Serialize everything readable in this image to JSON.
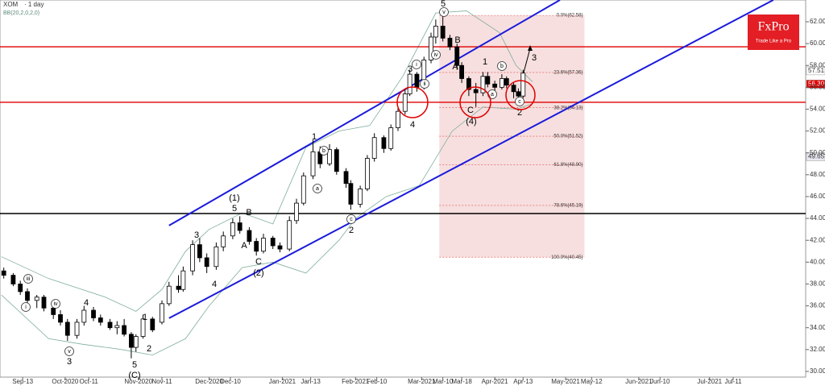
{
  "chart_data": {
    "type": "candlestick",
    "title": "XOM",
    "subtitle": "· 1 day",
    "indicator": "BB(20,2,0,2,0)",
    "brand": {
      "name": "FxPro",
      "tagline": "Trade Like a Pro"
    },
    "xlim": [
      -9.6,
      331.7
    ],
    "ylim": [
      29.48,
      63.99
    ],
    "xticks": [
      {
        "value": 0,
        "label": "Sep-13"
      },
      {
        "value": 18,
        "label": "Oct-2020"
      },
      {
        "value": 28,
        "label": "Oct-11"
      },
      {
        "value": 49,
        "label": "Nov-2020"
      },
      {
        "value": 59,
        "label": "Nov-11"
      },
      {
        "value": 79,
        "label": "Dec-2020"
      },
      {
        "value": 88,
        "label": "Dec-10"
      },
      {
        "value": 110,
        "label": "Jan-2021"
      },
      {
        "value": 122,
        "label": "Jan-13"
      },
      {
        "value": 141,
        "label": "Feb-2021"
      },
      {
        "value": 150,
        "label": "Feb-10"
      },
      {
        "value": 169,
        "label": "Mar-2021"
      },
      {
        "value": 178,
        "label": "Mar-10"
      },
      {
        "value": 186,
        "label": "Mar-18"
      },
      {
        "value": 200,
        "label": "Apr-2021"
      },
      {
        "value": 212,
        "label": "Apr-13"
      },
      {
        "value": 230,
        "label": "May-2021"
      },
      {
        "value": 241,
        "label": "May-12"
      },
      {
        "value": 261,
        "label": "Jun-2021"
      },
      {
        "value": 270,
        "label": "Jun-10"
      },
      {
        "value": 291,
        "label": "Jul-2021"
      },
      {
        "value": 301,
        "label": "Jul-11"
      }
    ],
    "yticks": [
      {
        "value": 30,
        "label": "30.00"
      },
      {
        "value": 32,
        "label": "32.00"
      },
      {
        "value": 34,
        "label": "34.00"
      },
      {
        "value": 36,
        "label": "36.00"
      },
      {
        "value": 38,
        "label": "38.00"
      },
      {
        "value": 40,
        "label": "40.00"
      },
      {
        "value": 42,
        "label": "42.00"
      },
      {
        "value": 44,
        "label": "44.00"
      },
      {
        "value": 46,
        "label": "46.00"
      },
      {
        "value": 48,
        "label": "48.00"
      },
      {
        "value": 50,
        "label": "50.00"
      },
      {
        "value": 52,
        "label": "52.00"
      },
      {
        "value": 54,
        "label": "54.00"
      },
      {
        "value": 56,
        "label": "56.00"
      },
      {
        "value": 58,
        "label": "58.00"
      },
      {
        "value": 60,
        "label": "60.00"
      },
      {
        "value": 62,
        "label": "62.00"
      }
    ],
    "x": [
      -8,
      -4,
      -1,
      2,
      6,
      9,
      13,
      16,
      19,
      23,
      26,
      30,
      33,
      37,
      40,
      43,
      46,
      48,
      51,
      55,
      59,
      62,
      66,
      68,
      72,
      75,
      78,
      82,
      85,
      89,
      92,
      96,
      99,
      102,
      106,
      109,
      113,
      116,
      119,
      123,
      126,
      130,
      133,
      137,
      139,
      143,
      146,
      149,
      153,
      156,
      159,
      162,
      164,
      167,
      170,
      173,
      175,
      178,
      181,
      184,
      186,
      189,
      192,
      195,
      197,
      200,
      203,
      205,
      208,
      210,
      212
    ],
    "open": [
      39.2,
      38.8,
      38,
      37.3,
      36.5,
      36.8,
      35.8,
      35.2,
      34.5,
      33.3,
      34.5,
      35.6,
      34.9,
      34.5,
      34,
      34.2,
      33.4,
      32.2,
      33.2,
      34.8,
      34.5,
      36.2,
      37.8,
      37.5,
      39.2,
      41.6,
      40.4,
      39.6,
      41.4,
      42.4,
      43.6,
      42.9,
      41.9,
      41,
      42.2,
      41.5,
      41.2,
      43.8,
      45.4,
      47.9,
      50.1,
      49,
      50.3,
      48.3,
      47.2,
      45.3,
      46.7,
      49.5,
      51.4,
      50.4,
      52.3,
      53.8,
      55.4,
      57.2,
      56,
      58.5,
      60.6,
      61.6,
      60.5,
      59.7,
      58,
      56.8,
      55.8,
      55.5,
      57,
      56.3,
      56,
      56.8,
      56.2,
      55.6,
      55.2
    ],
    "high": [
      39.5,
      39,
      38.3,
      37.6,
      37,
      37,
      36,
      35.6,
      34.8,
      34.8,
      36,
      35.9,
      35.2,
      34.8,
      34.6,
      34.8,
      33.6,
      33.4,
      35.2,
      35,
      36.5,
      38.2,
      38.8,
      39.6,
      42,
      42.2,
      40.8,
      41.8,
      42.8,
      44,
      44.2,
      43.2,
      42.2,
      42.6,
      42.4,
      41.8,
      44.2,
      45.8,
      48.2,
      51.2,
      50.6,
      50.8,
      50.5,
      48.6,
      47.5,
      47,
      49.8,
      51.8,
      51.6,
      52.6,
      54.2,
      55.8,
      57.6,
      57.4,
      58.8,
      61,
      62.2,
      62.6,
      60.8,
      60,
      58.3,
      57,
      56.4,
      57.4,
      57.4,
      56.6,
      57.2,
      57,
      56.4,
      55.9,
      57.6
    ],
    "low": [
      38.5,
      37.8,
      37,
      36.2,
      35.8,
      35.5,
      34.8,
      34.2,
      32.8,
      33,
      34.2,
      34.6,
      34.2,
      33.8,
      33.4,
      33.2,
      31.2,
      31.8,
      33,
      33.6,
      34.3,
      36,
      37.2,
      37.3,
      38.8,
      40,
      39,
      39.3,
      41,
      42.1,
      42.6,
      41.6,
      40.6,
      40.8,
      41.2,
      40.9,
      41,
      43.5,
      45.2,
      47.6,
      48.6,
      48.8,
      48,
      46.8,
      44.8,
      45,
      46.5,
      49.2,
      50,
      50.2,
      52,
      53.5,
      55.2,
      55.6,
      55.8,
      58.2,
      60,
      60.2,
      59.4,
      57.6,
      56.4,
      55.2,
      54.2,
      55.2,
      56,
      55.6,
      55.8,
      55.9,
      55,
      54.6,
      55
    ],
    "close": [
      38.8,
      38,
      37.3,
      36.5,
      36.8,
      35.8,
      35.2,
      34.5,
      33.3,
      34.5,
      35.6,
      34.9,
      34.5,
      34,
      34.2,
      33.4,
      32.2,
      33.2,
      34.8,
      33.8,
      36.2,
      37.8,
      37.5,
      39.2,
      41.6,
      40.4,
      39.6,
      41.4,
      42.4,
      43.6,
      42.9,
      41.9,
      41,
      42.2,
      41.5,
      41.2,
      43.8,
      45.4,
      47.9,
      50.1,
      49,
      50.3,
      48.3,
      47.2,
      45.3,
      46.7,
      49.5,
      51.4,
      50.4,
      52.3,
      53.8,
      55.4,
      57.2,
      56,
      58.5,
      60.6,
      61.6,
      60.5,
      59.7,
      58,
      56.8,
      55.8,
      55.5,
      57,
      56.3,
      56,
      56.8,
      56.2,
      55.6,
      55.2,
      57.3
    ],
    "bands": {
      "color": "#7fae9a",
      "upper_x": [
        -9,
        11,
        35,
        48,
        59,
        69,
        79,
        93,
        106,
        120,
        134,
        147,
        161,
        175,
        188,
        202,
        209,
        216
      ],
      "upper": [
        40.5,
        38.5,
        36.8,
        35.5,
        37.5,
        41,
        43,
        44.5,
        43.5,
        50.5,
        52,
        52.5,
        57,
        62.8,
        63,
        61,
        58,
        56.5
      ],
      "lower_x": [
        -9,
        11,
        25,
        42,
        55,
        69,
        79,
        93,
        106,
        120,
        134,
        141,
        154,
        168,
        182,
        195,
        209,
        216
      ],
      "lower": [
        37,
        33,
        32.5,
        32,
        31.5,
        33,
        36,
        39.5,
        40,
        39,
        42,
        44,
        46,
        47,
        52,
        54.2,
        54,
        54.5
      ]
    },
    "levels": [
      {
        "value": 59.71,
        "color": "#e00000"
      },
      {
        "value": 54.63,
        "color": "#e00000"
      },
      {
        "value": 44.45,
        "color": "#000000"
      }
    ],
    "trendlines": [
      {
        "x": [
          62,
          227.6
        ],
        "y": [
          43.35,
          63.99
        ],
        "color": "#1a1adb"
      },
      {
        "x": [
          62,
          318
        ],
        "y": [
          34.87,
          63.99
        ],
        "color": "#1a1adb"
      }
    ],
    "fib_box": {
      "x": [
        176.5,
        238
      ],
      "color": "#f4d4d4"
    },
    "fib_levels": [
      {
        "value": 62.58,
        "label": "0.0%(62.58)"
      },
      {
        "value": 57.36,
        "label": "23.6%(57.36)"
      },
      {
        "value": 54.13,
        "label": "38.2%(54.13)"
      },
      {
        "value": 51.52,
        "label": "50.0%(51.52)"
      },
      {
        "value": 48.9,
        "label": "61.8%(48.90)"
      },
      {
        "value": 45.19,
        "label": "78.6%(45.19)"
      },
      {
        "value": 40.45,
        "label": "100.0%(40.45)"
      }
    ],
    "price_tags": [
      {
        "value": 57.51,
        "color": "#ffffff"
      },
      {
        "value": {
          "value": 56.3,
          "label": "56.30"
        },
        "color": "#e00000"
      },
      {
        "value": 49.65,
        "color": "#e8e8f0"
      }
    ],
    "wave_labels": [
      {
        "text": "5",
        "circled": false
      },
      {
        "text": "v",
        "circled": true
      },
      {
        "text": "B",
        "circled": false
      },
      {
        "text": "iv",
        "circled": true
      },
      {
        "text": "A",
        "circled": false
      },
      {
        "text": "3",
        "circled": false
      },
      {
        "text": "i",
        "circled": true
      },
      {
        "text": "ii",
        "circled": true
      },
      {
        "text": "4",
        "circled": false
      },
      {
        "text": "C",
        "circled": false
      },
      {
        "text": "(4)",
        "circled": false
      },
      {
        "text": "1",
        "circled": false
      },
      {
        "text": "b",
        "circled": true
      },
      {
        "text": "a",
        "circled": true
      },
      {
        "text": "c",
        "circled": true
      },
      {
        "text": "2",
        "circled": false
      },
      {
        "text": "3",
        "circled": false
      },
      {
        "text": "1",
        "circled": false
      },
      {
        "text": "b",
        "circled": true
      },
      {
        "text": "a",
        "circled": true
      },
      {
        "text": "(1)",
        "circled": false
      },
      {
        "text": "5",
        "circled": false
      },
      {
        "text": "B",
        "circled": false
      },
      {
        "text": "A",
        "circled": false
      },
      {
        "text": "3",
        "circled": false
      },
      {
        "text": "4",
        "circled": false
      },
      {
        "text": "C",
        "circled": false
      },
      {
        "text": "(2)",
        "circled": false
      },
      {
        "text": "c",
        "circled": true
      },
      {
        "text": "2",
        "circled": false
      },
      {
        "text": "4",
        "circled": false
      },
      {
        "text": "1",
        "circled": false
      },
      {
        "text": "2",
        "circled": false
      },
      {
        "text": "5",
        "circled": false
      },
      {
        "text": "(C)",
        "circled": false
      },
      {
        "text": "3",
        "circled": false
      },
      {
        "text": "v",
        "circled": true
      },
      {
        "text": "iv",
        "circled": true
      },
      {
        "text": "iii",
        "circled": true
      },
      {
        "text": "i",
        "circled": true
      }
    ]
  }
}
